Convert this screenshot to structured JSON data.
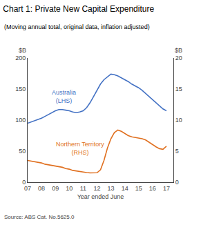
{
  "chart_data": {
    "type": "line",
    "title": "Chart 1: Private New Capital Expenditure",
    "subtitle": "(Moving annual total, original data, inflation adjusted)",
    "x_label": "Year ended June",
    "y_label": "$B",
    "y2_label": "$B",
    "source": "Source: ABS Cat. No.5625.0",
    "xlim": [
      2007,
      2017.5
    ],
    "xticks": [
      {
        "value": 2007,
        "label": "07"
      },
      {
        "value": 2008,
        "label": "08"
      },
      {
        "value": 2009,
        "label": "09"
      },
      {
        "value": 2010,
        "label": "10"
      },
      {
        "value": 2011,
        "label": "11"
      },
      {
        "value": 2012,
        "label": "12"
      },
      {
        "value": 2013,
        "label": "13"
      },
      {
        "value": 2014,
        "label": "14"
      },
      {
        "value": 2015,
        "label": "15"
      },
      {
        "value": 2016,
        "label": "16"
      },
      {
        "value": 2017,
        "label": "17"
      }
    ],
    "ylim": [
      0,
      200
    ],
    "yticks": [
      0,
      50,
      100,
      150,
      200
    ],
    "y2lim": [
      0,
      20
    ],
    "y2ticks": [
      0,
      5,
      10,
      15,
      20
    ],
    "grid": false,
    "x": [
      2007,
      2007.25,
      2007.5,
      2007.75,
      2008,
      2008.25,
      2008.5,
      2008.75,
      2009,
      2009.25,
      2009.5,
      2009.75,
      2010,
      2010.25,
      2010.5,
      2010.75,
      2011,
      2011.25,
      2011.5,
      2011.75,
      2012,
      2012.25,
      2012.5,
      2012.75,
      2013,
      2013.25,
      2013.5,
      2013.75,
      2014,
      2014.25,
      2014.5,
      2014.75,
      2015,
      2015.25,
      2015.5,
      2015.75,
      2016,
      2016.25,
      2016.5,
      2016.75,
      2017
    ],
    "series": [
      {
        "name": "Australia\n(LHS)",
        "color": "#4472C4",
        "axis": "y",
        "label_x": 2009.6,
        "label_y": 138,
        "values": [
          95,
          97,
          99,
          101,
          103,
          106,
          109,
          112,
          115,
          117,
          117,
          116,
          115,
          113,
          112,
          113,
          115,
          120,
          128,
          138,
          148,
          158,
          165,
          170,
          174,
          173,
          171,
          168,
          165,
          162,
          158,
          155,
          152,
          148,
          143,
          138,
          132,
          128,
          122,
          118,
          115
        ]
      },
      {
        "name": "Northern Territory\n(RHS)",
        "color": "#E07020",
        "axis": "y2",
        "label_x": 2010.8,
        "label_y": 5.5,
        "values": [
          3.5,
          3.4,
          3.3,
          3.2,
          3.1,
          2.9,
          2.8,
          2.7,
          2.6,
          2.5,
          2.4,
          2.2,
          2.1,
          1.9,
          1.8,
          1.7,
          1.6,
          1.55,
          1.5,
          1.5,
          1.52,
          2.0,
          3.5,
          5.5,
          7.0,
          8.0,
          8.4,
          8.2,
          7.8,
          7.5,
          7.3,
          7.2,
          7.1,
          7.0,
          6.8,
          6.4,
          6.0,
          5.7,
          5.4,
          5.3,
          5.8
        ]
      }
    ]
  }
}
